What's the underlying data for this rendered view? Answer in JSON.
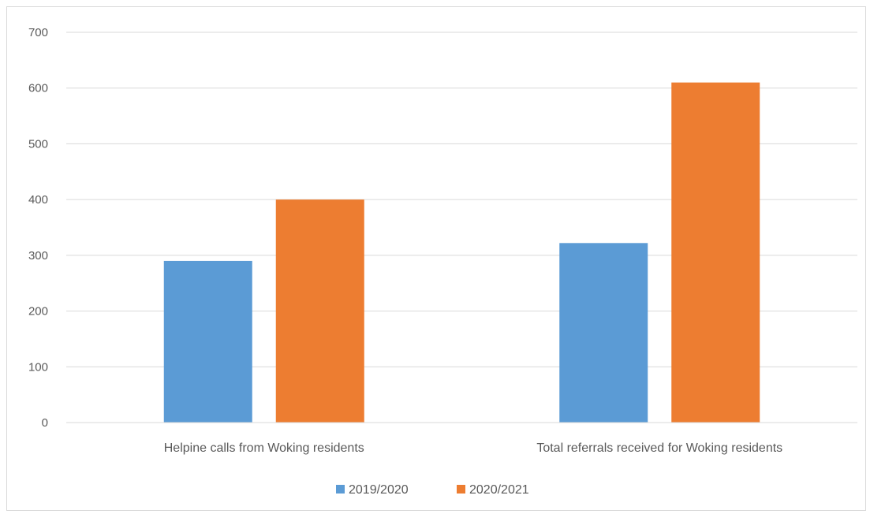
{
  "chart_data": {
    "type": "bar",
    "title": "",
    "xlabel": "",
    "ylabel": "",
    "categories": [
      "Helpine calls from Woking residents",
      "Total referrals received for Woking residents"
    ],
    "series": [
      {
        "name": "2019/2020",
        "values": [
          290,
          322
        ],
        "color": "#5b9bd5"
      },
      {
        "name": "2020/2021",
        "values": [
          400,
          610
        ],
        "color": "#ed7d31"
      }
    ],
    "ylim": [
      0,
      700
    ],
    "yticks": [
      0,
      100,
      200,
      300,
      400,
      500,
      600,
      700
    ],
    "grid": true,
    "legend_position": "bottom"
  }
}
